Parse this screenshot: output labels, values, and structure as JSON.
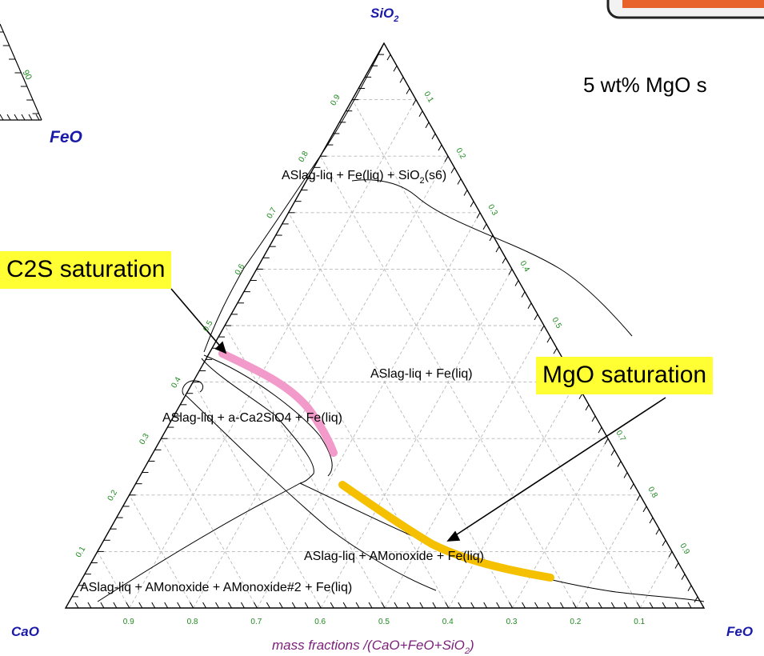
{
  "header": {
    "subtitle": "5 wt% MgO s"
  },
  "inset": {
    "tick_value": "90",
    "corner_label": "FeO"
  },
  "diagram": {
    "apex_label_base": "SiO",
    "apex_label_sub": "2",
    "left_corner_label": "CaO",
    "right_corner_label": "FeO",
    "axis_title_base": "mass fractions /(CaO+FeO+SiO",
    "axis_title_sub": "2",
    "axis_title_end": ")",
    "bottom_ticks": [
      "0.9",
      "0.8",
      "0.7",
      "0.6",
      "0.5",
      "0.4",
      "0.3",
      "0.2",
      "0.1"
    ],
    "left_ticks": [
      "0.1",
      "0.2",
      "0.3",
      "0.4",
      "0.5",
      "0.6",
      "0.7",
      "0.8",
      "0.9"
    ],
    "right_ticks": [
      "0.1",
      "0.2",
      "0.3",
      "0.4",
      "0.5",
      "0.6",
      "0.7",
      "0.8",
      "0.9"
    ],
    "region_labels": {
      "silica": "ASlag-liq + Fe(liq) + SiO",
      "silica_sub": "2",
      "silica_end": "(s6)",
      "liquid": "ASlag-liq + Fe(liq)",
      "c2s": "ASlag-liq + a-Ca2SiO4 + Fe(liq)",
      "monoxide": "ASlag-liq + AMonoxide + Fe(liq)",
      "two_monoxide": "ASlag-liq + AMonoxide + AMonoxide#2 + Fe(liq)"
    },
    "colors": {
      "apex_labels": "#1a1aa8",
      "tick_labels": "#1f8a1f",
      "axis_title": "#7a1f7a",
      "c2s_highlight": "#f29ac9",
      "mgo_highlight": "#f5c000",
      "callout_bg": "#ffff33"
    }
  },
  "callouts": {
    "c2s": "C2S saturation",
    "mgo": "MgO saturation"
  }
}
